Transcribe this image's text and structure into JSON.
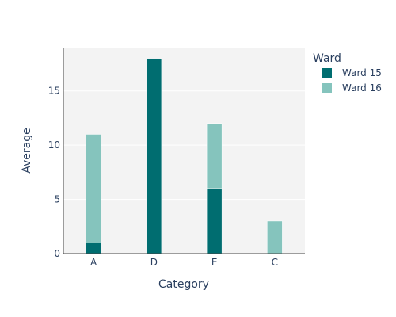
{
  "chart_data": {
    "type": "bar",
    "barmode": "stack",
    "categories": [
      "A",
      "D",
      "E",
      "C"
    ],
    "series": [
      {
        "name": "Ward 15",
        "values": [
          1,
          18,
          6,
          0
        ],
        "color": "#006d70"
      },
      {
        "name": "Ward 16",
        "values": [
          10,
          0,
          6,
          3
        ],
        "color": "#85c4bd"
      }
    ],
    "xlabel": "Category",
    "ylabel": "Average",
    "ylim": [
      0,
      19
    ],
    "yticks": [
      0,
      5,
      10,
      15
    ],
    "ytick_labels": [
      "0",
      "5",
      "10",
      "15"
    ],
    "grid": true,
    "legend": {
      "title": "Ward",
      "position": "right"
    },
    "colors": {
      "plot_bg": "#f3f3f3",
      "grid": "#ffffff",
      "axis_line": "#444444",
      "text": "#2a3f5f"
    }
  }
}
